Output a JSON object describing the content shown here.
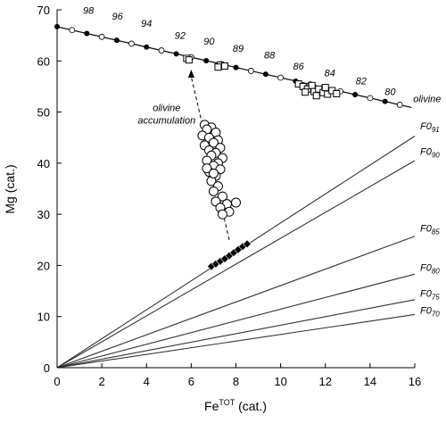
{
  "chart_data": {
    "type": "scatter",
    "xlabel": "Fe",
    "xlabel_sup": "TOT",
    "xlabel_suffix": " (cat.)",
    "ylabel": "Mg (cat.)",
    "xlim": [
      0,
      16
    ],
    "ylim": [
      0,
      70
    ],
    "xticks": [
      0,
      2,
      4,
      6,
      8,
      10,
      12,
      14,
      16
    ],
    "yticks": [
      0,
      10,
      20,
      30,
      40,
      50,
      60,
      70
    ],
    "olivine_line": {
      "label": "olivine",
      "x": [
        0,
        15.85
      ],
      "y": [
        66.7,
        50.9
      ],
      "filled_marker_x": [
        0,
        1.33,
        2.67,
        4.0,
        5.33,
        6.67,
        8.0,
        9.33,
        10.67,
        12.0,
        13.33,
        14.67
      ],
      "open_marker_x": [
        0.67,
        2.0,
        3.33,
        4.67,
        6.0,
        7.33,
        8.67,
        10.0,
        11.33,
        12.67,
        14.0,
        15.33
      ],
      "fo_labels": [
        {
          "text": "98",
          "x": 1.4,
          "y": 69.2
        },
        {
          "text": "96",
          "x": 2.7,
          "y": 68.1
        },
        {
          "text": "94",
          "x": 4.0,
          "y": 66.7
        },
        {
          "text": "92",
          "x": 5.5,
          "y": 64.3
        },
        {
          "text": "90",
          "x": 6.8,
          "y": 63.2
        },
        {
          "text": "89",
          "x": 8.1,
          "y": 61.8
        },
        {
          "text": "88",
          "x": 9.5,
          "y": 60.5
        },
        {
          "text": "86",
          "x": 10.8,
          "y": 58.3
        },
        {
          "text": "84",
          "x": 12.2,
          "y": 57.0
        },
        {
          "text": "82",
          "x": 13.6,
          "y": 55.4
        },
        {
          "text": "80",
          "x": 14.9,
          "y": 53.3
        }
      ]
    },
    "fo_lines": [
      {
        "label": "F0",
        "sub": "91",
        "x_end": 16,
        "y_end": 45.3,
        "label_y": 46.3
      },
      {
        "label": "F0",
        "sub": "90",
        "x_end": 16,
        "y_end": 40.5,
        "label_y": 41.3
      },
      {
        "label": "F0",
        "sub": "85",
        "x_end": 16,
        "y_end": 25.7,
        "label_y": 26.3
      },
      {
        "label": "F0",
        "sub": "80",
        "x_end": 16,
        "y_end": 18.3,
        "label_y": 18.6
      },
      {
        "label": "F0",
        "sub": "75",
        "x_end": 16,
        "y_end": 13.3,
        "label_y": 13.5
      },
      {
        "label": "F0",
        "sub": "70",
        "x_end": 16,
        "y_end": 10.4,
        "label_y": 10.2
      }
    ],
    "series": [
      {
        "marker": "open-circle",
        "points": [
          [
            6.6,
            47.5
          ],
          [
            6.9,
            47.0
          ],
          [
            6.7,
            46.6
          ],
          [
            7.1,
            46.0
          ],
          [
            6.5,
            45.4
          ],
          [
            6.8,
            45.0
          ],
          [
            7.2,
            44.5
          ],
          [
            7.0,
            44.0
          ],
          [
            6.6,
            43.5
          ],
          [
            7.3,
            43.0
          ],
          [
            6.8,
            42.5
          ],
          [
            7.1,
            42.0
          ],
          [
            6.9,
            41.5
          ],
          [
            7.4,
            41.0
          ],
          [
            6.7,
            40.5
          ],
          [
            7.2,
            40.0
          ],
          [
            7.0,
            39.5
          ],
          [
            7.3,
            38.8
          ],
          [
            6.8,
            38.3
          ],
          [
            7.1,
            37.5
          ],
          [
            6.9,
            36.5
          ],
          [
            7.2,
            35.5
          ],
          [
            7.0,
            34.5
          ],
          [
            7.4,
            33.5
          ],
          [
            7.1,
            32.5
          ],
          [
            7.6,
            32.0
          ],
          [
            7.3,
            31.3
          ],
          [
            7.7,
            30.5
          ],
          [
            7.4,
            30.0
          ],
          [
            8.0,
            32.3
          ],
          [
            6.7,
            39.0
          ],
          [
            7.0,
            38.0
          ]
        ]
      },
      {
        "marker": "filled-diamond",
        "points": [
          [
            6.9,
            19.8
          ],
          [
            7.1,
            20.3
          ],
          [
            7.3,
            20.8
          ],
          [
            7.5,
            21.3
          ],
          [
            7.7,
            21.9
          ],
          [
            7.9,
            22.5
          ],
          [
            8.1,
            23.1
          ],
          [
            8.3,
            23.7
          ],
          [
            8.5,
            24.2
          ]
        ]
      },
      {
        "marker": "open-square",
        "points": [
          [
            5.8,
            60.5
          ],
          [
            5.9,
            60.2
          ],
          [
            7.3,
            59.2
          ],
          [
            7.5,
            59.0
          ],
          [
            7.2,
            58.8
          ],
          [
            10.8,
            55.5
          ],
          [
            11.0,
            55.0
          ],
          [
            11.2,
            54.5
          ],
          [
            11.4,
            55.2
          ],
          [
            11.5,
            54.0
          ],
          [
            11.7,
            54.5
          ],
          [
            11.9,
            53.8
          ],
          [
            12.0,
            54.8
          ],
          [
            12.1,
            53.5
          ],
          [
            12.3,
            54.2
          ],
          [
            12.5,
            53.6
          ],
          [
            11.1,
            53.9
          ],
          [
            11.6,
            53.2
          ]
        ]
      }
    ],
    "annotation": {
      "lines": [
        "olivine",
        "accumulation"
      ],
      "text_x": 4.9,
      "text_y": 50.2,
      "arrow_from": [
        7.7,
        25.0
      ],
      "arrow_to": [
        6.0,
        58.3
      ]
    },
    "grid": false,
    "legend": "none"
  }
}
